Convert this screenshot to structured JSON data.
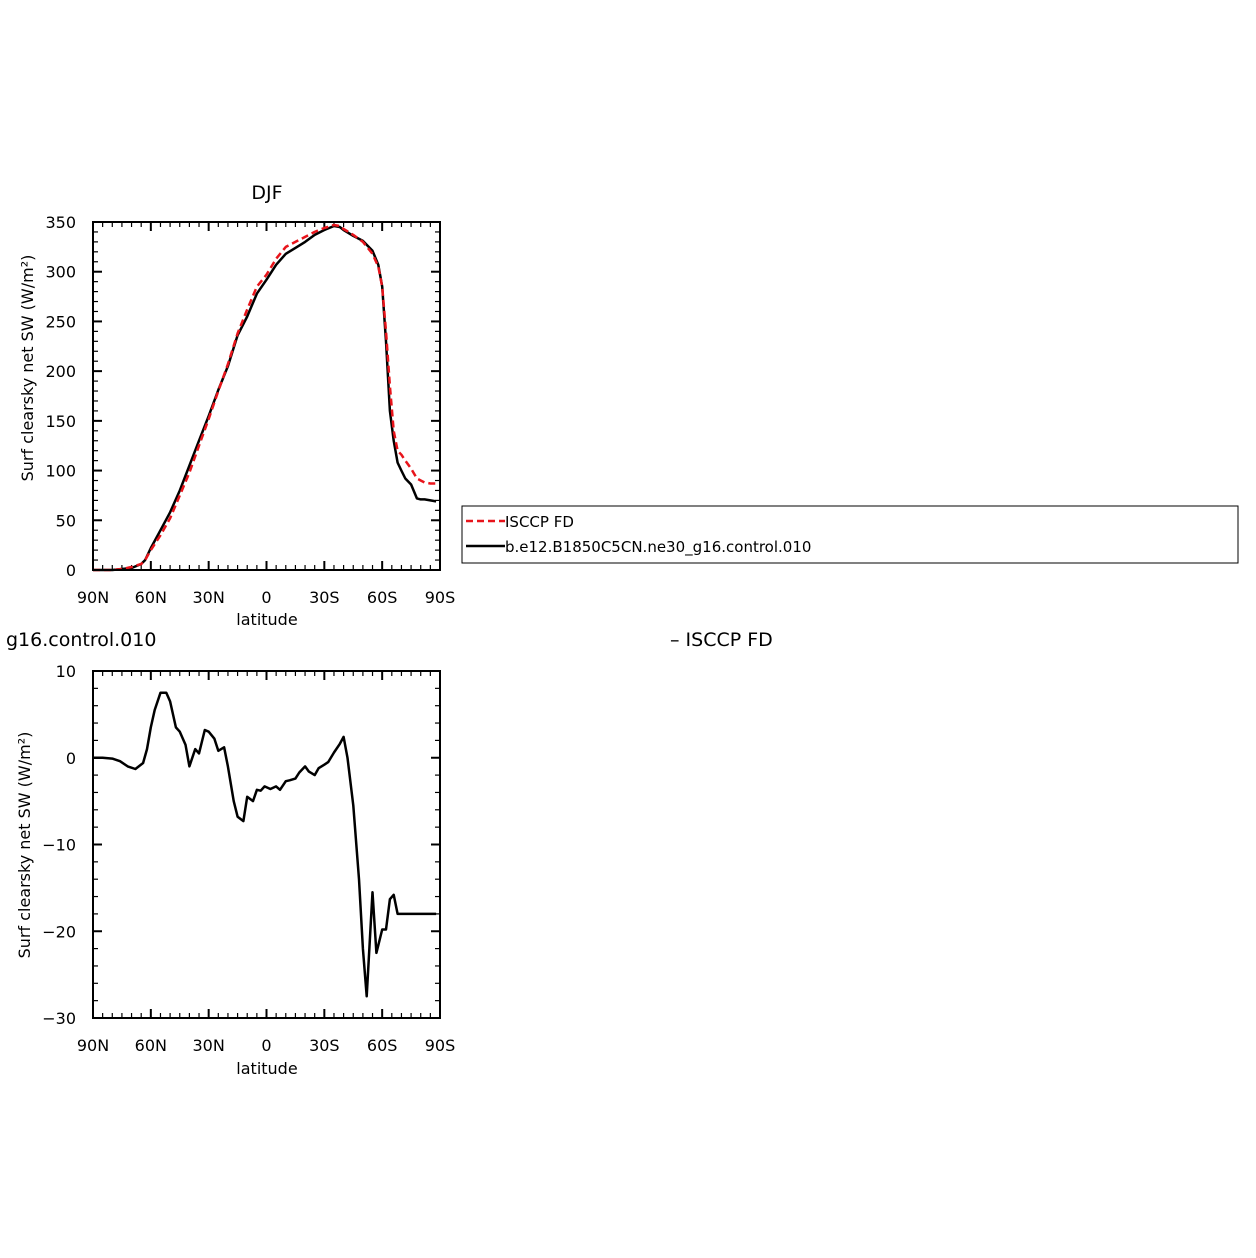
{
  "colors": {
    "obs": "#e8141b",
    "model": "#000000"
  },
  "top_title": "DJF",
  "bottom_left_title": "g16.control.010",
  "bottom_right_title": "– ISCCP FD",
  "legend": {
    "items": [
      {
        "label": "ISCCP FD",
        "style": "dashed",
        "color": "#e8141b"
      },
      {
        "label": "b.e12.B1850C5CN.ne30_g16.control.010",
        "style": "solid",
        "color": "#000000"
      }
    ]
  },
  "chart_data": [
    {
      "type": "line",
      "title": "DJF",
      "xlabel": "latitude",
      "ylabel": "Surf clearsky net SW (W/m²)",
      "xlim": [
        90,
        -90
      ],
      "ylim": [
        0,
        350
      ],
      "xticks": [
        {
          "value": 90,
          "label": "90N"
        },
        {
          "value": 60,
          "label": "60N"
        },
        {
          "value": 30,
          "label": "30N"
        },
        {
          "value": 0,
          "label": "0"
        },
        {
          "value": -30,
          "label": "30S"
        },
        {
          "value": -60,
          "label": "60S"
        },
        {
          "value": -90,
          "label": "90S"
        }
      ],
      "yticks": [
        0,
        50,
        100,
        150,
        200,
        250,
        300,
        350
      ],
      "legend_position": "right",
      "series": [
        {
          "name": "ISCCP FD",
          "style": "dashed",
          "x": [
            90,
            85,
            80,
            75,
            70,
            65,
            63,
            60,
            55,
            50,
            45,
            40,
            35,
            30,
            25,
            20,
            15,
            10,
            5,
            0,
            -5,
            -10,
            -15,
            -20,
            -25,
            -30,
            -35,
            -38,
            -40,
            -45,
            -50,
            -55,
            -58,
            -60,
            -62,
            -64,
            -66,
            -68,
            -70,
            -72,
            -75,
            -78,
            -80,
            -82,
            -85,
            -88
          ],
          "y": [
            0,
            0,
            0,
            1,
            3,
            6,
            10,
            20,
            35,
            52,
            75,
            98,
            125,
            152,
            180,
            207,
            238,
            262,
            285,
            297,
            313,
            325,
            330,
            335,
            340,
            344,
            347,
            346,
            343,
            337,
            330,
            318,
            305,
            285,
            240,
            185,
            140,
            120,
            116,
            110,
            102,
            92,
            90,
            88,
            87,
            87
          ]
        },
        {
          "name": "b.e12.B1850C5CN.ne30_g16.control.010",
          "style": "solid",
          "x": [
            90,
            85,
            80,
            75,
            70,
            65,
            63,
            60,
            55,
            50,
            45,
            40,
            35,
            30,
            25,
            20,
            15,
            10,
            5,
            0,
            -5,
            -10,
            -15,
            -20,
            -25,
            -30,
            -35,
            -38,
            -40,
            -45,
            -50,
            -55,
            -58,
            -60,
            -62,
            -64,
            -66,
            -68,
            -70,
            -72,
            -75,
            -78,
            -80,
            -82,
            -85,
            -88
          ],
          "y": [
            0,
            0,
            0,
            1,
            2,
            6,
            10,
            22,
            40,
            58,
            80,
            105,
            130,
            155,
            181,
            205,
            236,
            255,
            278,
            292,
            307,
            318,
            324,
            330,
            337,
            342,
            346,
            345,
            342,
            336,
            331,
            321,
            307,
            285,
            230,
            160,
            130,
            108,
            100,
            92,
            86,
            72,
            71,
            71,
            70,
            69
          ]
        }
      ]
    },
    {
      "type": "line",
      "title": "g16.control.010 – ISCCP FD",
      "xlabel": "latitude",
      "ylabel": "Surf clearsky net SW (W/m²)",
      "xlim": [
        90,
        -90
      ],
      "ylim": [
        -30,
        10
      ],
      "xticks": [
        {
          "value": 90,
          "label": "90N"
        },
        {
          "value": 60,
          "label": "60N"
        },
        {
          "value": 30,
          "label": "30N"
        },
        {
          "value": 0,
          "label": "0"
        },
        {
          "value": -30,
          "label": "30S"
        },
        {
          "value": -60,
          "label": "60S"
        },
        {
          "value": -90,
          "label": "90S"
        }
      ],
      "yticks": [
        {
          "value": 10,
          "label": "10"
        },
        {
          "value": 0,
          "label": "0"
        },
        {
          "value": -10,
          "label": "−10"
        },
        {
          "value": -20,
          "label": "−20"
        },
        {
          "value": -30,
          "label": "−30"
        }
      ],
      "series": [
        {
          "style": "solid",
          "x": [
            90,
            85,
            80,
            76,
            72,
            68,
            64,
            62,
            60,
            58,
            55,
            52,
            50,
            47,
            45,
            42,
            40,
            37,
            35,
            32,
            30,
            27,
            25,
            22,
            20,
            17,
            15,
            12,
            10,
            7,
            5,
            3,
            1,
            -2,
            -5,
            -7,
            -10,
            -12,
            -15,
            -17,
            -20,
            -22,
            -25,
            -27,
            -30,
            -32,
            -35,
            -38,
            -40,
            -42,
            -45,
            -48,
            -50,
            -52,
            -55,
            -57,
            -60,
            -62,
            -64,
            -66,
            -68,
            -70,
            -72,
            -74,
            -76,
            -78,
            -80,
            -82,
            -85,
            -88
          ],
          "y": [
            0,
            0,
            -0.1,
            -0.4,
            -1.0,
            -1.3,
            -0.6,
            1.0,
            3.5,
            5.5,
            7.5,
            7.5,
            6.5,
            3.5,
            3.0,
            1.5,
            -1.0,
            1.0,
            0.5,
            3.2,
            3.0,
            2.2,
            0.8,
            1.2,
            -1.0,
            -5.0,
            -6.8,
            -7.3,
            -4.5,
            -5.0,
            -3.7,
            -3.8,
            -3.3,
            -3.6,
            -3.3,
            -3.7,
            -2.7,
            -2.6,
            -2.4,
            -1.7,
            -1.0,
            -1.6,
            -2.0,
            -1.2,
            -0.8,
            -0.5,
            0.6,
            1.6,
            2.4,
            0.0,
            -5.5,
            -14.0,
            -22.0,
            -27.5,
            -15.5,
            -22.5,
            -19.8,
            -19.8,
            -16.3,
            -15.8,
            -18.0,
            -18.0,
            -18.0,
            -18.0,
            -18.0,
            -18.0,
            -18.0,
            -18.0,
            -18.0,
            -18.0
          ]
        }
      ]
    }
  ]
}
